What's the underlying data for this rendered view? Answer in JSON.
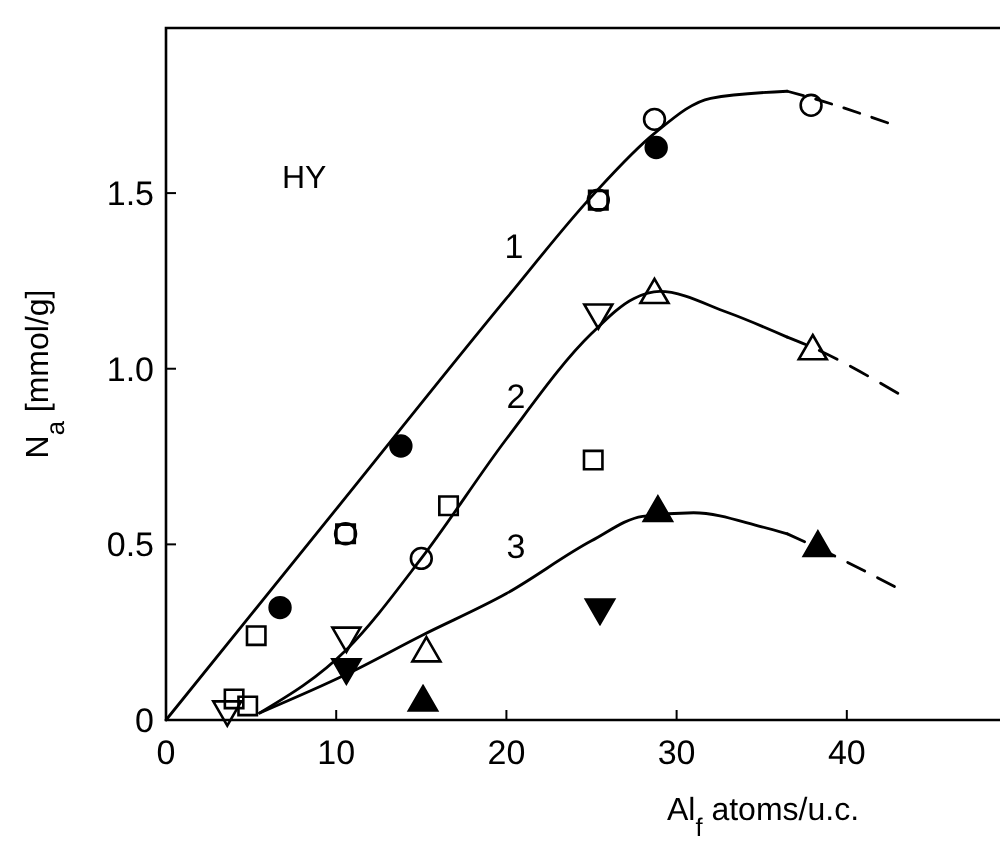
{
  "chart_data": {
    "type": "scatter",
    "xlabel": "Al$_{f}$ atoms/u.c.",
    "ylabel": "N$_{a}$ [mmol/g]",
    "xlim": [
      0,
      49
    ],
    "ylim": [
      0,
      1.97
    ],
    "xticks": [
      0,
      10,
      20,
      30,
      40
    ],
    "yticks": [
      0,
      0.5,
      {
        "value": 1,
        "label": "1.0"
      },
      1.5
    ],
    "grid": false,
    "annotations": [
      "HY",
      "1",
      "2",
      "3"
    ],
    "series": [
      {
        "type": "line",
        "color": "#000000",
        "marker": "none",
        "line_style": "solid",
        "x": [
          0,
          10,
          20,
          25,
          28.7,
          32,
          36.5
        ],
        "values": [
          0,
          0.6,
          1.2,
          1.49,
          1.67,
          1.77,
          1.79
        ]
      },
      {
        "type": "line",
        "color": "#000000",
        "marker": "none",
        "line_style": "dashed",
        "x": [
          36.5,
          38,
          42.4
        ],
        "values": [
          1.79,
          1.77,
          1.7
        ]
      },
      {
        "type": "line",
        "color": "#000000",
        "marker": "none",
        "line_style": "solid",
        "x": [
          5.5,
          10.6,
          15,
          20,
          25,
          27.5,
          29,
          33,
          36.5
        ],
        "values": [
          0.02,
          0.2,
          0.46,
          0.8,
          1.1,
          1.2,
          1.22,
          1.16,
          1.09
        ]
      },
      {
        "type": "line",
        "color": "#000000",
        "marker": "none",
        "line_style": "dashed",
        "x": [
          36.5,
          38,
          43
        ],
        "values": [
          1.09,
          1.06,
          0.93
        ]
      },
      {
        "type": "line",
        "color": "#000000",
        "marker": "none",
        "line_style": "solid",
        "x": [
          5.5,
          10.6,
          15,
          20,
          25,
          28,
          31,
          35,
          36.5
        ],
        "values": [
          0.02,
          0.13,
          0.24,
          0.36,
          0.51,
          0.58,
          0.59,
          0.55,
          0.53
        ]
      },
      {
        "type": "line",
        "color": "#000000",
        "marker": "none",
        "line_style": "dashed",
        "x": [
          36.5,
          38.3,
          42.8
        ],
        "values": [
          0.53,
          0.49,
          0.38
        ]
      },
      {
        "color": "#000000",
        "marker": "circle-open",
        "x": [
          28.7,
          37.9,
          15,
          25.4,
          10.55
        ],
        "values": [
          1.71,
          1.75,
          0.46,
          1.48,
          0.53
        ]
      },
      {
        "color": "#000000",
        "marker": "circle",
        "x": [
          28.8,
          13.8,
          6.7
        ],
        "values": [
          1.63,
          0.78,
          0.32
        ]
      },
      {
        "color": "#000000",
        "marker": "square-open",
        "x": [
          5.3,
          4.0,
          4.8,
          16.6,
          25.1,
          25.4,
          10.55
        ],
        "values": [
          0.24,
          0.06,
          0.04,
          0.61,
          0.74,
          1.48,
          0.53
        ]
      },
      {
        "color": "#000000",
        "marker": "triangle-down-open",
        "x": [
          3.6,
          10.6,
          25.4
        ],
        "values": [
          0.03,
          0.24,
          1.16
        ]
      },
      {
        "color": "#000000",
        "marker": "triangle-open",
        "x": [
          28.7,
          38.0,
          15.3
        ],
        "values": [
          1.21,
          1.05,
          0.19
        ]
      },
      {
        "color": "#000000",
        "marker": "triangle",
        "x": [
          15.1,
          28.9,
          38.3
        ],
        "values": [
          0.05,
          0.59,
          0.49
        ]
      },
      {
        "color": "#000000",
        "marker": "triangle-down",
        "x": [
          10.6,
          25.5
        ],
        "values": [
          0.15,
          0.32
        ]
      }
    ]
  }
}
